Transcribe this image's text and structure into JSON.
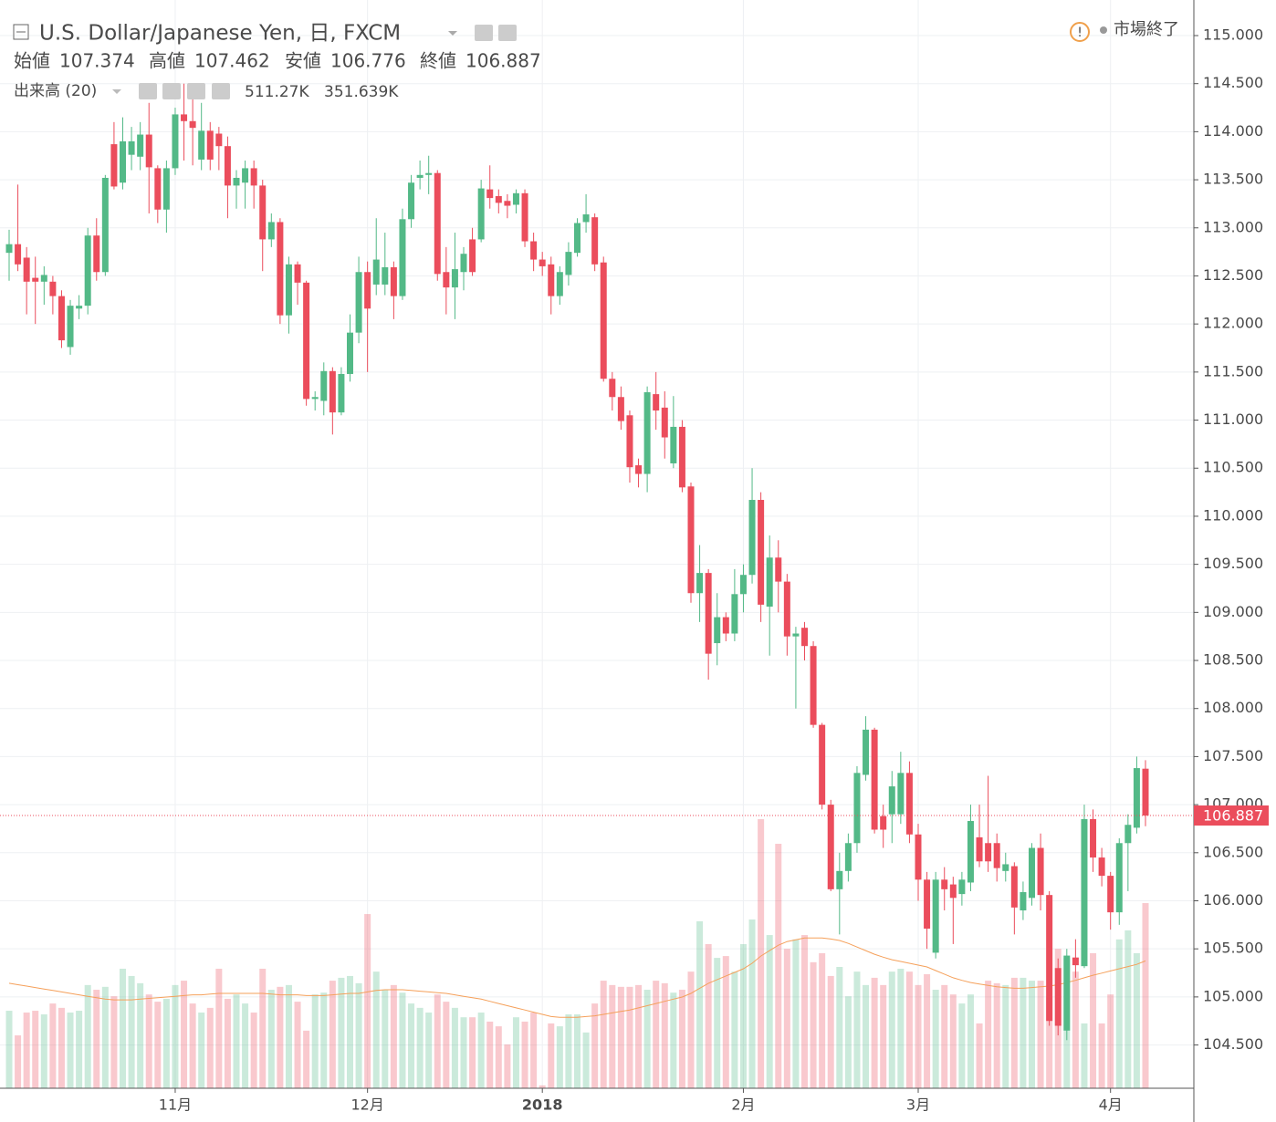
{
  "chart_data": {
    "type": "candlestick",
    "title": "U.S. Dollar/Japanese Yen, 日, FXCM",
    "ohlc_labels": [
      "始値",
      "高値",
      "安値",
      "終値"
    ],
    "status": "市場終了",
    "up_color": "#53b987",
    "down_color": "#eb4d5c",
    "grid": true,
    "ylim": [
      104.05,
      115.37
    ],
    "yticks": [
      {
        "value": 104.5,
        "label": "104.500"
      },
      {
        "value": 105,
        "label": "105.000"
      },
      {
        "value": 105.5,
        "label": "105.500"
      },
      {
        "value": 106,
        "label": "106.000"
      },
      {
        "value": 106.5,
        "label": "106.500"
      },
      {
        "value": 107,
        "label": "107.000"
      },
      {
        "value": 107.5,
        "label": "107.500"
      },
      {
        "value": 108,
        "label": "108.000"
      },
      {
        "value": 108.5,
        "label": "108.500"
      },
      {
        "value": 109,
        "label": "109.000"
      },
      {
        "value": 109.5,
        "label": "109.500"
      },
      {
        "value": 110,
        "label": "110.000"
      },
      {
        "value": 110.5,
        "label": "110.500"
      },
      {
        "value": 111,
        "label": "111.000"
      },
      {
        "value": 111.5,
        "label": "111.500"
      },
      {
        "value": 112,
        "label": "112.000"
      },
      {
        "value": 112.5,
        "label": "112.500"
      },
      {
        "value": 113,
        "label": "113.000"
      },
      {
        "value": 113.5,
        "label": "113.500"
      },
      {
        "value": 114,
        "label": "114.000"
      },
      {
        "value": 114.5,
        "label": "114.500"
      },
      {
        "value": 115,
        "label": "115.000"
      }
    ],
    "y2lim": [
      0,
      3005
    ],
    "categories": [
      null,
      null,
      null,
      null,
      null,
      null,
      null,
      null,
      null,
      null,
      null,
      null,
      null,
      null,
      null,
      null,
      null,
      null,
      null,
      "11月",
      null,
      null,
      null,
      null,
      null,
      null,
      null,
      null,
      null,
      null,
      null,
      null,
      null,
      null,
      null,
      null,
      null,
      null,
      null,
      null,
      null,
      "12月",
      null,
      null,
      null,
      null,
      null,
      null,
      null,
      null,
      null,
      null,
      null,
      null,
      null,
      null,
      null,
      null,
      null,
      null,
      null,
      "2018",
      null,
      null,
      null,
      null,
      null,
      null,
      null,
      null,
      null,
      null,
      null,
      null,
      null,
      null,
      null,
      null,
      null,
      null,
      null,
      null,
      null,
      null,
      "2月",
      null,
      null,
      null,
      null,
      null,
      null,
      null,
      null,
      null,
      null,
      null,
      null,
      null,
      null,
      null,
      null,
      null,
      null,
      null,
      "3月",
      null,
      null,
      null,
      null,
      null,
      null,
      null,
      null,
      null,
      null,
      null,
      null,
      null,
      null,
      null,
      null,
      null,
      null,
      null,
      null,
      null,
      "4月",
      null,
      null,
      null,
      null
    ],
    "candles": [
      [
        112.74,
        112.98,
        112.45,
        112.83
      ],
      [
        112.83,
        113.45,
        112.55,
        112.62
      ],
      [
        112.69,
        112.8,
        112.1,
        112.44
      ],
      [
        112.48,
        112.7,
        112.0,
        112.44
      ],
      [
        112.44,
        112.6,
        112.2,
        112.51
      ],
      [
        112.44,
        112.5,
        112.1,
        112.29
      ],
      [
        112.29,
        112.35,
        111.75,
        111.83
      ],
      [
        111.76,
        112.25,
        111.68,
        112.19
      ],
      [
        112.16,
        112.3,
        112.05,
        112.19
      ],
      [
        112.19,
        113.0,
        112.1,
        112.92
      ],
      [
        112.92,
        113.1,
        112.45,
        112.54
      ],
      [
        112.54,
        113.55,
        112.5,
        113.52
      ],
      [
        113.87,
        114.1,
        113.4,
        113.43
      ],
      [
        113.47,
        114.15,
        113.4,
        113.9
      ],
      [
        113.76,
        114.05,
        113.6,
        113.9
      ],
      [
        113.74,
        114.1,
        113.6,
        113.97
      ],
      [
        113.97,
        114.3,
        113.15,
        113.63
      ],
      [
        113.62,
        113.65,
        113.05,
        113.19
      ],
      [
        113.19,
        113.7,
        112.95,
        113.62
      ],
      [
        113.62,
        114.25,
        113.55,
        114.18
      ],
      [
        114.18,
        114.5,
        113.7,
        114.11
      ],
      [
        114.11,
        114.35,
        113.65,
        114.04
      ],
      [
        113.71,
        114.3,
        113.6,
        114.01
      ],
      [
        114.01,
        114.1,
        113.6,
        113.71
      ],
      [
        113.98,
        114.05,
        113.6,
        113.85
      ],
      [
        113.85,
        113.95,
        113.1,
        113.44
      ],
      [
        113.44,
        113.6,
        113.2,
        113.52
      ],
      [
        113.47,
        113.7,
        113.2,
        113.62
      ],
      [
        113.62,
        113.7,
        113.2,
        113.44
      ],
      [
        113.44,
        113.5,
        112.55,
        112.88
      ],
      [
        112.88,
        113.15,
        112.8,
        113.06
      ],
      [
        113.06,
        113.1,
        112.0,
        112.09
      ],
      [
        112.09,
        112.7,
        111.9,
        112.62
      ],
      [
        112.62,
        112.65,
        112.2,
        112.43
      ],
      [
        112.43,
        112.45,
        111.15,
        111.22
      ],
      [
        111.22,
        111.3,
        111.1,
        111.24
      ],
      [
        111.2,
        111.6,
        111.05,
        111.51
      ],
      [
        111.51,
        111.55,
        110.85,
        111.08
      ],
      [
        111.08,
        111.55,
        111.05,
        111.48
      ],
      [
        111.48,
        112.1,
        111.4,
        111.91
      ],
      [
        111.91,
        112.7,
        111.8,
        112.54
      ],
      [
        112.54,
        112.65,
        111.5,
        112.16
      ],
      [
        112.41,
        113.1,
        112.3,
        112.67
      ],
      [
        112.41,
        112.95,
        112.3,
        112.59
      ],
      [
        112.59,
        112.65,
        112.05,
        112.29
      ],
      [
        112.29,
        113.2,
        112.25,
        113.09
      ],
      [
        113.09,
        113.55,
        113.0,
        113.47
      ],
      [
        113.52,
        113.7,
        113.4,
        113.55
      ],
      [
        113.55,
        113.75,
        113.35,
        113.57
      ],
      [
        113.57,
        113.6,
        112.45,
        112.52
      ],
      [
        112.54,
        112.8,
        112.1,
        112.38
      ],
      [
        112.38,
        112.95,
        112.05,
        112.57
      ],
      [
        112.54,
        112.8,
        112.35,
        112.73
      ],
      [
        112.88,
        113.0,
        112.5,
        112.54
      ],
      [
        112.88,
        113.5,
        112.85,
        113.41
      ],
      [
        113.4,
        113.65,
        113.2,
        113.31
      ],
      [
        113.33,
        113.4,
        113.15,
        113.26
      ],
      [
        113.28,
        113.35,
        113.1,
        113.23
      ],
      [
        113.24,
        113.4,
        113.15,
        113.36
      ],
      [
        113.36,
        113.4,
        112.8,
        112.86
      ],
      [
        112.86,
        112.95,
        112.55,
        112.67
      ],
      [
        112.67,
        112.75,
        112.5,
        112.6
      ],
      [
        112.62,
        112.7,
        112.1,
        112.29
      ],
      [
        112.29,
        112.6,
        112.2,
        112.54
      ],
      [
        112.51,
        112.85,
        112.4,
        112.75
      ],
      [
        112.74,
        113.1,
        112.7,
        113.05
      ],
      [
        113.06,
        113.35,
        112.95,
        113.14
      ],
      [
        113.11,
        113.15,
        112.55,
        112.62
      ],
      [
        112.64,
        112.7,
        111.4,
        111.43
      ],
      [
        111.43,
        111.5,
        111.1,
        111.24
      ],
      [
        111.24,
        111.35,
        110.9,
        110.99
      ],
      [
        111.05,
        111.1,
        110.35,
        110.51
      ],
      [
        110.53,
        110.6,
        110.3,
        110.44
      ],
      [
        110.44,
        111.35,
        110.25,
        111.29
      ],
      [
        111.27,
        111.5,
        110.9,
        111.1
      ],
      [
        111.13,
        111.3,
        110.6,
        110.82
      ],
      [
        110.55,
        111.25,
        110.5,
        110.93
      ],
      [
        110.93,
        111.0,
        110.25,
        110.3
      ],
      [
        110.31,
        110.35,
        109.1,
        109.2
      ],
      [
        109.2,
        109.7,
        108.9,
        109.41
      ],
      [
        109.41,
        109.45,
        108.3,
        108.57
      ],
      [
        108.68,
        109.2,
        108.45,
        108.95
      ],
      [
        108.95,
        109.0,
        108.7,
        108.78
      ],
      [
        108.78,
        109.45,
        108.7,
        109.19
      ],
      [
        109.19,
        109.5,
        109.0,
        109.39
      ],
      [
        109.39,
        110.5,
        109.3,
        110.17
      ],
      [
        110.17,
        110.25,
        108.9,
        109.08
      ],
      [
        109.06,
        109.8,
        108.55,
        109.57
      ],
      [
        109.57,
        109.75,
        109.0,
        109.32
      ],
      [
        109.32,
        109.4,
        108.55,
        108.75
      ],
      [
        108.75,
        108.85,
        108.0,
        108.78
      ],
      [
        108.84,
        108.9,
        108.5,
        108.65
      ],
      [
        108.65,
        108.7,
        107.8,
        107.83
      ],
      [
        107.83,
        107.85,
        106.95,
        107.0
      ],
      [
        107.0,
        107.05,
        106.1,
        106.12
      ],
      [
        106.12,
        106.5,
        105.65,
        106.31
      ],
      [
        106.31,
        106.7,
        106.2,
        106.6
      ],
      [
        106.6,
        107.4,
        106.5,
        107.33
      ],
      [
        107.31,
        107.92,
        107.25,
        107.78
      ],
      [
        107.78,
        107.8,
        106.7,
        106.74
      ],
      [
        106.88,
        107.0,
        106.55,
        106.74
      ],
      [
        106.9,
        107.35,
        106.6,
        107.19
      ],
      [
        106.9,
        107.55,
        106.8,
        107.33
      ],
      [
        107.33,
        107.45,
        106.6,
        106.69
      ],
      [
        106.69,
        106.8,
        106.0,
        106.22
      ],
      [
        106.22,
        106.3,
        105.5,
        105.71
      ],
      [
        105.46,
        106.3,
        105.4,
        106.22
      ],
      [
        106.22,
        106.35,
        105.9,
        106.12
      ],
      [
        106.17,
        106.25,
        105.55,
        106.03
      ],
      [
        106.07,
        106.3,
        105.95,
        106.22
      ],
      [
        106.19,
        107.0,
        106.1,
        106.83
      ],
      [
        106.66,
        107.0,
        106.35,
        106.41
      ],
      [
        106.6,
        107.3,
        106.3,
        106.41
      ],
      [
        106.6,
        106.7,
        106.2,
        106.34
      ],
      [
        106.31,
        106.5,
        106.2,
        106.38
      ],
      [
        106.36,
        106.4,
        105.65,
        105.93
      ],
      [
        105.9,
        106.2,
        105.8,
        106.09
      ],
      [
        106.03,
        106.6,
        105.95,
        106.55
      ],
      [
        106.55,
        106.7,
        105.9,
        106.06
      ],
      [
        106.06,
        106.1,
        104.7,
        104.75
      ],
      [
        105.3,
        105.4,
        104.6,
        104.7
      ],
      [
        104.65,
        105.5,
        104.55,
        105.43
      ],
      [
        105.41,
        105.6,
        105.2,
        105.33
      ],
      [
        105.32,
        107.0,
        105.3,
        106.85
      ],
      [
        106.85,
        106.95,
        106.3,
        106.45
      ],
      [
        106.45,
        106.55,
        106.15,
        106.26
      ],
      [
        106.26,
        106.3,
        105.7,
        105.88
      ],
      [
        105.88,
        106.65,
        105.75,
        106.6
      ],
      [
        106.6,
        106.9,
        106.1,
        106.79
      ],
      [
        106.76,
        107.5,
        106.7,
        107.38
      ],
      [
        107.374,
        107.462,
        106.776,
        106.887
      ]
    ],
    "volume": {
      "name": "出来高 (20)",
      "values": [
        214,
        146,
        209,
        214,
        204,
        234,
        222,
        209,
        214,
        285,
        272,
        280,
        254,
        330,
        310,
        290,
        259,
        239,
        247,
        285,
        297,
        234,
        209,
        222,
        330,
        247,
        259,
        234,
        209,
        330,
        272,
        280,
        285,
        239,
        159,
        259,
        264,
        297,
        305,
        310,
        290,
        481,
        322,
        272,
        285,
        264,
        234,
        222,
        209,
        259,
        239,
        222,
        196,
        196,
        209,
        184,
        171,
        121,
        196,
        184,
        209,
        8,
        179,
        171,
        204,
        204,
        154,
        234,
        297,
        285,
        280,
        280,
        285,
        272,
        297,
        290,
        264,
        272,
        322,
        461,
        398,
        360,
        365,
        322,
        398,
        466,
        743,
        423,
        675,
        385,
        411,
        423,
        348,
        373,
        310,
        335,
        254,
        322,
        285,
        305,
        285,
        322,
        330,
        322,
        285,
        315,
        272,
        285,
        259,
        234,
        259,
        179,
        297,
        290,
        285,
        305,
        305,
        297,
        297,
        254,
        385,
        360,
        322,
        179,
        373,
        179,
        259,
        411,
        436,
        373,
        511.27
      ],
      "last_label": "511.27K",
      "ma_values": [
        290,
        286,
        282,
        278,
        274,
        270,
        266,
        262,
        258,
        254,
        250,
        246,
        244,
        244,
        244,
        246,
        248,
        250,
        252,
        254,
        256,
        258,
        258,
        260,
        262,
        262,
        262,
        262,
        262,
        262,
        260,
        258,
        258,
        258,
        256,
        256,
        256,
        258,
        260,
        262,
        262,
        266,
        270,
        272,
        272,
        272,
        270,
        268,
        266,
        264,
        262,
        258,
        254,
        250,
        246,
        240,
        234,
        228,
        222,
        216,
        210,
        204,
        198,
        196,
        196,
        196,
        198,
        200,
        204,
        208,
        212,
        216,
        222,
        228,
        234,
        240,
        246,
        252,
        262,
        276,
        290,
        300,
        310,
        320,
        330,
        345,
        365,
        380,
        395,
        405,
        410,
        415,
        415,
        415,
        412,
        408,
        400,
        390,
        380,
        370,
        362,
        355,
        350,
        345,
        340,
        335,
        325,
        315,
        305,
        298,
        292,
        288,
        284,
        280,
        278,
        276,
        276,
        278,
        280,
        282,
        286,
        292,
        298,
        305,
        312,
        318,
        324,
        330,
        336,
        342,
        351.639
      ],
      "ma_last_label": "351.639K",
      "ma_color": "#f5a05a"
    }
  }
}
